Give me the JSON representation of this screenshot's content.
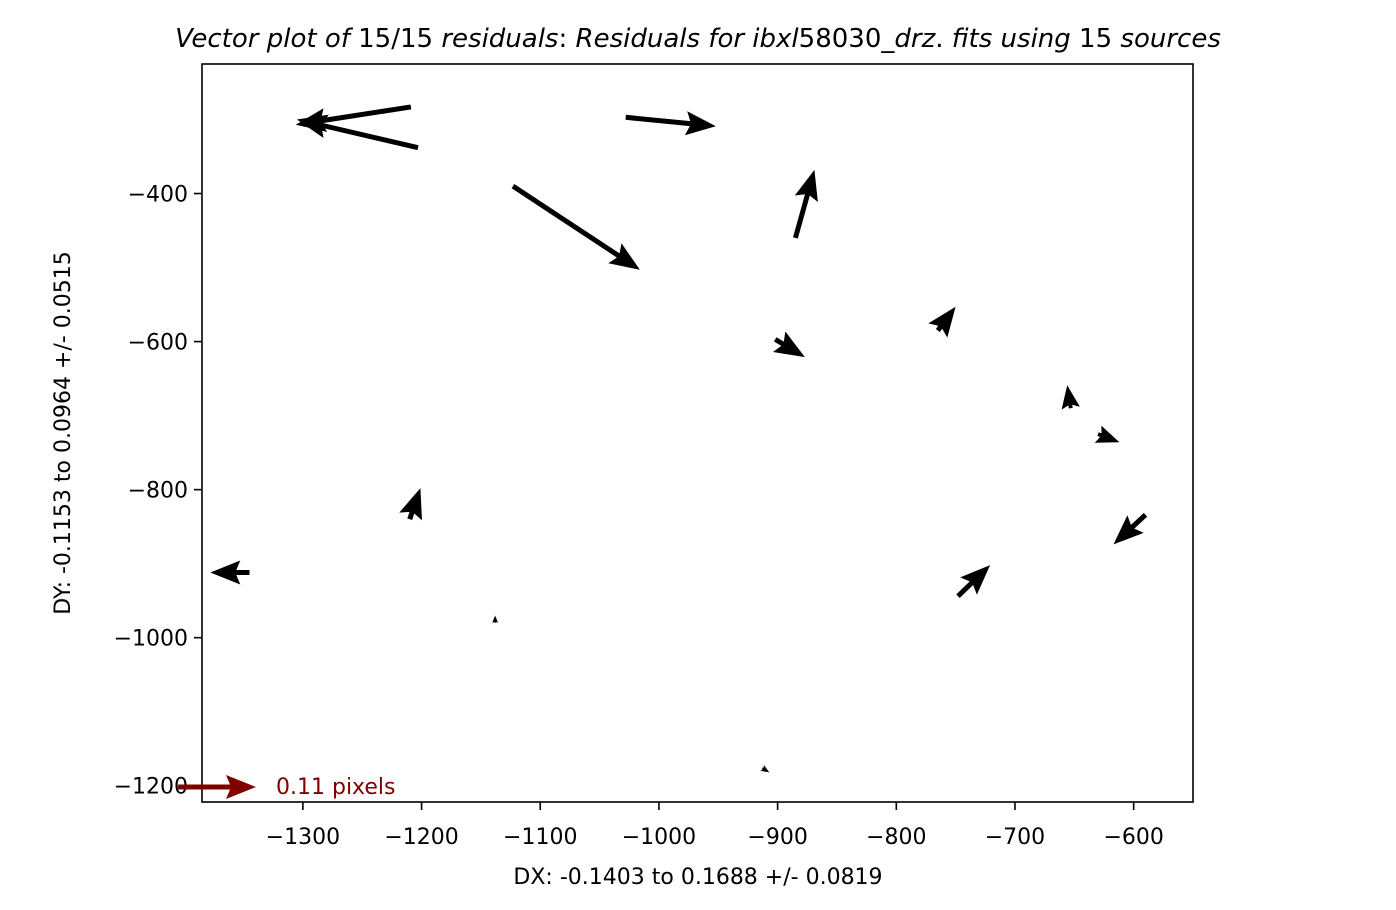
{
  "chart_data": {
    "type": "quiver",
    "title_parts": [
      {
        "text": "Vector plot of ",
        "style": "italic"
      },
      {
        "text": "15/15",
        "style": "normal"
      },
      {
        "text": " residuals",
        "style": "italic"
      },
      {
        "text": ":  ",
        "style": "normal"
      },
      {
        "text": "Residuals for ibxl",
        "style": "italic"
      },
      {
        "text": "58030",
        "style": "normal"
      },
      {
        "text": "_drz",
        "style": "italic"
      },
      {
        "text": ". ",
        "style": "normal"
      },
      {
        "text": "fits using ",
        "style": "italic"
      },
      {
        "text": "15",
        "style": "normal"
      },
      {
        "text": " sources",
        "style": "italic"
      }
    ],
    "xlabel": "DX: -0.1403 to 0.1688 +/- 0.0819",
    "ylabel": "DY: -0.1153 to 0.0964 +/- 0.0515",
    "xlim": [
      -1385,
      -550
    ],
    "ylim": [
      -1222,
      -225
    ],
    "xticks": [
      -1300,
      -1200,
      -1100,
      -1000,
      -900,
      -800,
      -700,
      -600
    ],
    "yticks": [
      -400,
      -600,
      -800,
      -1000,
      -1200
    ],
    "xtick_labels": [
      "−1300",
      "−1200",
      "−1100",
      "−1000",
      "−900",
      "−800",
      "−700",
      "−600"
    ],
    "ytick_labels": [
      "−400",
      "−600",
      "−800",
      "−1000",
      "−1200"
    ],
    "arrow_color": "#000000",
    "vectors": [
      {
        "x": -1209,
        "y": -283,
        "dx": -97,
        "dy": -24
      },
      {
        "x": -1203,
        "y": -338,
        "dx": -102,
        "dy": 38
      },
      {
        "x": -1028,
        "y": -297,
        "dx": 76,
        "dy": -12
      },
      {
        "x": -1123,
        "y": -390,
        "dx": 107,
        "dy": -113
      },
      {
        "x": -885,
        "y": -460,
        "dx": 16,
        "dy": 92
      },
      {
        "x": -765,
        "y": -585,
        "dx": 15,
        "dy": 32
      },
      {
        "x": -902,
        "y": -597,
        "dx": 25,
        "dy": -24
      },
      {
        "x": -653,
        "y": -690,
        "dx": -3,
        "dy": 31
      },
      {
        "x": -630,
        "y": -725,
        "dx": 18,
        "dy": -11
      },
      {
        "x": -1210,
        "y": -840,
        "dx": 9,
        "dy": 42
      },
      {
        "x": -1345,
        "y": -912,
        "dx": -33,
        "dy": 0
      },
      {
        "x": -748,
        "y": -944,
        "dx": 27,
        "dy": 42
      },
      {
        "x": -590,
        "y": -834,
        "dx": -27,
        "dy": -40
      },
      {
        "x": -1138,
        "y": -980,
        "dx": 0,
        "dy": 10
      },
      {
        "x": -913,
        "y": -1176,
        "dx": 6,
        "dy": -6
      }
    ],
    "key": {
      "label": "0.11 pixels",
      "color": "#800000"
    }
  }
}
